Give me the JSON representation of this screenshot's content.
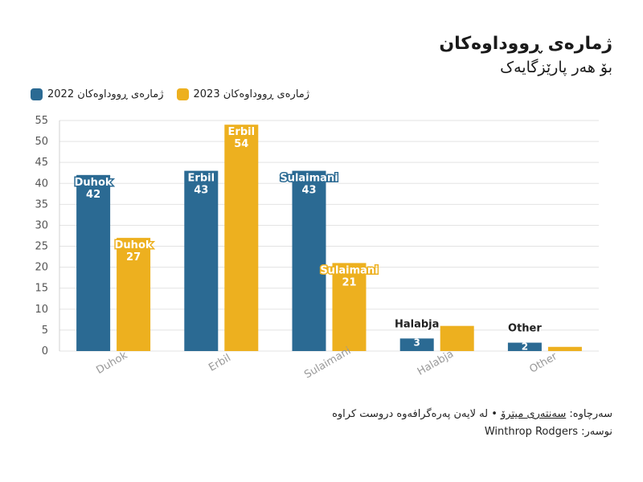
{
  "chart_data": {
    "type": "bar",
    "title": "ژمارەی ڕووداوەکان",
    "subtitle": "بۆ هەر پارێزگایەک",
    "categories": [
      "Duhok",
      "Erbil",
      "Sulaimani",
      "Halabja",
      "Other"
    ],
    "series": [
      {
        "name": "ژمارەی ڕووداوەکان 2022",
        "color": "#2b6a93",
        "values": [
          42,
          43,
          43,
          3,
          2
        ],
        "labels": [
          "Duhok",
          "Erbil",
          "Sulaimani",
          "Halabja",
          "Other"
        ]
      },
      {
        "name": "ژمارەی ڕووداوەکان 2023",
        "color": "#edb01f",
        "values": [
          27,
          54,
          21,
          6,
          1
        ],
        "labels": [
          "Duhok",
          "Erbil",
          "Sulaimani",
          "",
          ""
        ]
      }
    ],
    "ylim": [
      0,
      55
    ],
    "yticks": [
      0,
      5,
      10,
      15,
      20,
      25,
      30,
      35,
      40,
      45,
      50,
      55
    ],
    "grid": true,
    "legend_position": "top-left"
  },
  "footer": {
    "source_prefix": "سەرچاوە: ",
    "source_link": "سەنتەری میترۆ",
    "source_suffix": " • لە لایەن پەرەگرافەوە دروست کراوە",
    "author": "نوسەر: Winthrop Rodgers"
  }
}
